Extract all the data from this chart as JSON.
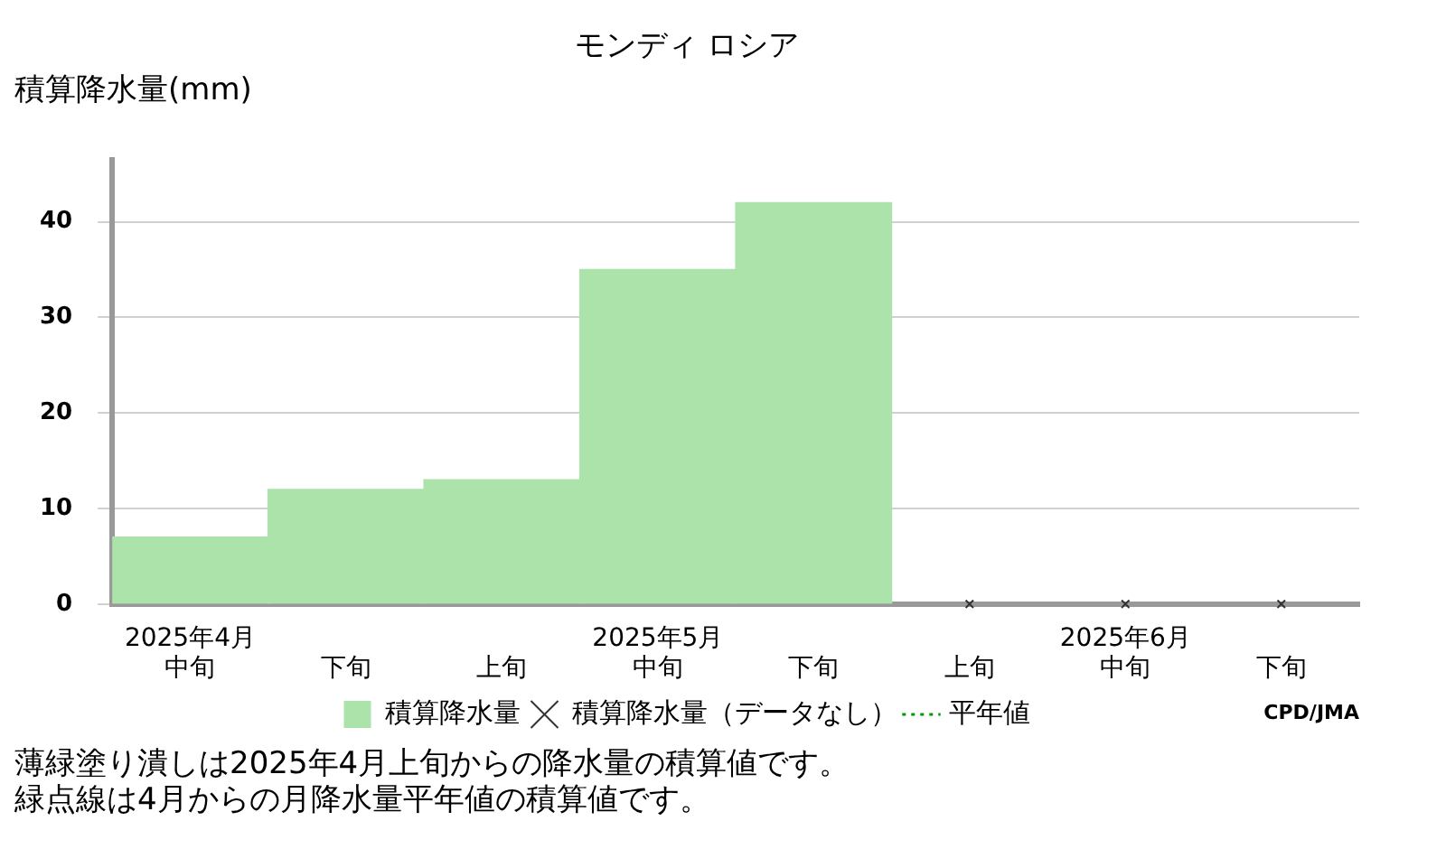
{
  "chart_data": {
    "type": "bar",
    "title": "モンディ ロシア",
    "ylabel": "積算降水量(mm)",
    "categories": [
      "2025年4月中旬",
      "下旬",
      "上旬",
      "2025年5月中旬",
      "下旬",
      "上旬",
      "2025年6月中旬",
      "下旬"
    ],
    "series": [
      {
        "name": "積算降水量",
        "color": "#abe3aa",
        "values": [
          7,
          12,
          13,
          35,
          42,
          null,
          null,
          null
        ]
      },
      {
        "name": "積算降水量（データなし）",
        "type": "scatter",
        "marker": "cross",
        "color": "#333333",
        "values": [
          null,
          null,
          null,
          null,
          null,
          0,
          0,
          0
        ]
      },
      {
        "name": "平年値",
        "type": "line",
        "line_style": "dotted",
        "color": "#009900",
        "values": [
          null,
          null,
          null,
          null,
          null,
          null,
          null,
          null
        ]
      }
    ],
    "ylim": [
      0,
      46.5
    ],
    "yticks": [
      0,
      10,
      20,
      30,
      40
    ],
    "grid": "y",
    "legend": "bottom",
    "annotations": [
      "CPD/JMA",
      "薄緑塗り潰しは2025年4月上旬からの降水量の積算値です。",
      "緑点線は4月からの月降水量平年値の積算値です。"
    ]
  }
}
